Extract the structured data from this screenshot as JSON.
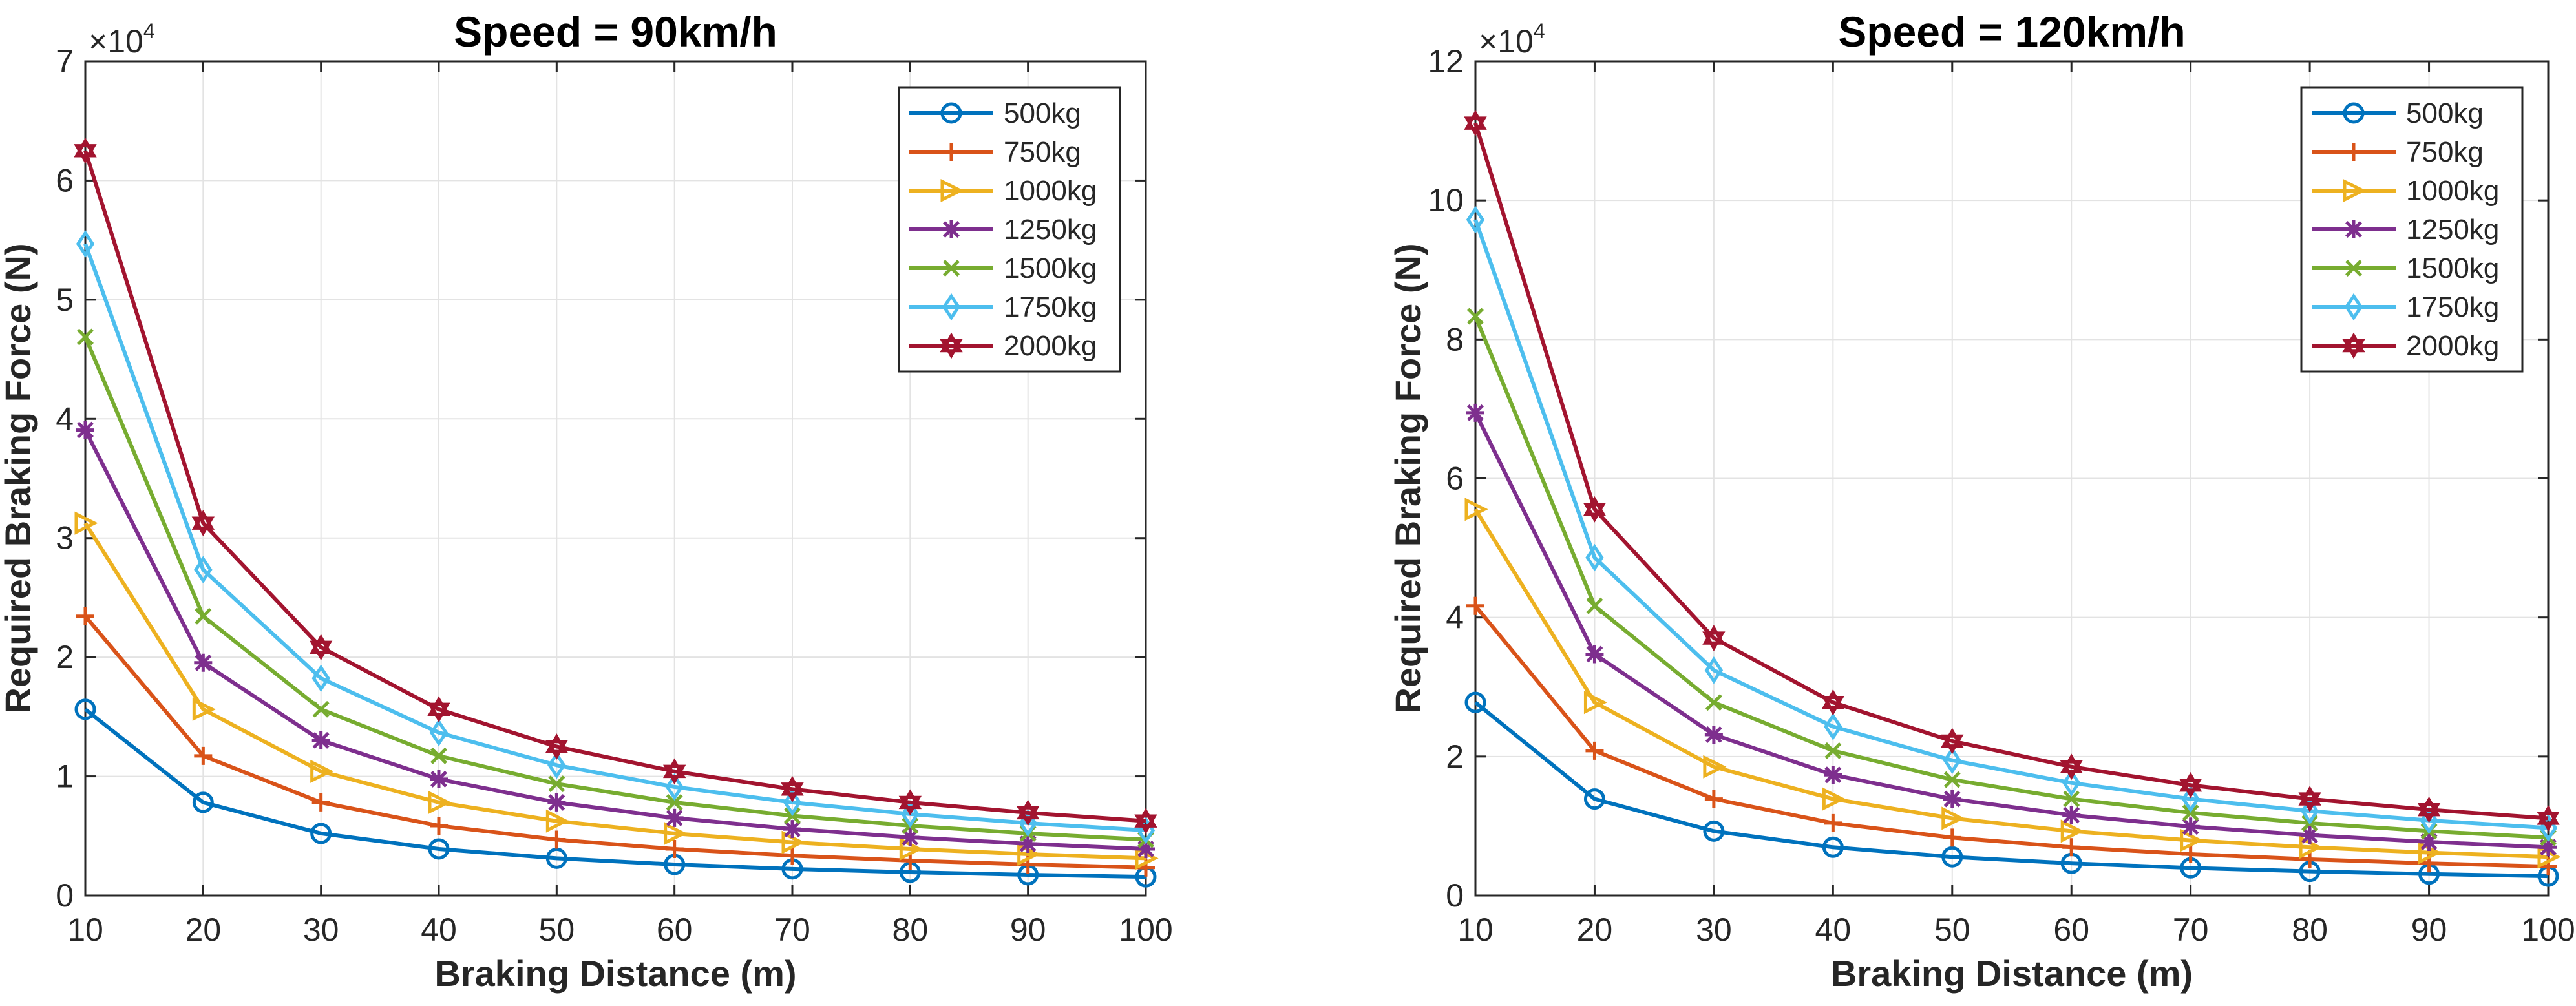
{
  "chart_data": [
    {
      "type": "line",
      "title": "Speed = 90km/h",
      "xlabel": "Braking Distance (m)",
      "ylabel": "Required Braking Force (N)",
      "y_multiplier": "×10",
      "y_multiplier_exp": "4",
      "x": [
        10,
        20,
        30,
        40,
        50,
        60,
        70,
        80,
        90,
        100
      ],
      "xlim": [
        10,
        100
      ],
      "ylim": [
        0,
        70000
      ],
      "x_ticks": [
        "10",
        "20",
        "30",
        "40",
        "50",
        "60",
        "70",
        "80",
        "90",
        "100"
      ],
      "y_ticks": [
        0,
        10000,
        20000,
        30000,
        40000,
        50000,
        60000,
        70000
      ],
      "y_tick_labels": [
        "0",
        "1",
        "2",
        "3",
        "4",
        "5",
        "6",
        "7"
      ],
      "grid": true,
      "legend_position": "top-right",
      "series": [
        {
          "name": "500kg",
          "color": "#0072BD",
          "marker": "circle",
          "values": [
            15625,
            7813,
            5208,
            3906,
            3125,
            2604,
            2232,
            1953,
            1736,
            1563
          ]
        },
        {
          "name": "750kg",
          "color": "#D95319",
          "marker": "plus",
          "values": [
            23438,
            11719,
            7813,
            5859,
            4688,
            3906,
            3348,
            2930,
            2604,
            2344
          ]
        },
        {
          "name": "1000kg",
          "color": "#EDB120",
          "marker": "triangle-right",
          "values": [
            31250,
            15625,
            10417,
            7813,
            6250,
            5208,
            4464,
            3906,
            3472,
            3125
          ]
        },
        {
          "name": "1250kg",
          "color": "#7E2F8E",
          "marker": "asterisk",
          "values": [
            39063,
            19531,
            13021,
            9766,
            7813,
            6510,
            5580,
            4883,
            4340,
            3906
          ]
        },
        {
          "name": "1500kg",
          "color": "#77AC30",
          "marker": "x",
          "values": [
            46875,
            23438,
            15625,
            11719,
            9375,
            7813,
            6696,
            5859,
            5208,
            4688
          ]
        },
        {
          "name": "1750kg",
          "color": "#4DBEEE",
          "marker": "diamond",
          "values": [
            54688,
            27344,
            18229,
            13672,
            10938,
            9115,
            7813,
            6836,
            6076,
            5469
          ]
        },
        {
          "name": "2000kg",
          "color": "#A2142F",
          "marker": "hexagram",
          "values": [
            62500,
            31250,
            20833,
            15625,
            12500,
            10417,
            8929,
            7813,
            6944,
            6250
          ]
        }
      ]
    },
    {
      "type": "line",
      "title": "Speed = 120km/h",
      "xlabel": "Braking Distance (m)",
      "ylabel": "Required Braking Force (N)",
      "y_multiplier": "×10",
      "y_multiplier_exp": "4",
      "x": [
        10,
        20,
        30,
        40,
        50,
        60,
        70,
        80,
        90,
        100
      ],
      "xlim": [
        10,
        100
      ],
      "ylim": [
        0,
        120000
      ],
      "x_ticks": [
        "10",
        "20",
        "30",
        "40",
        "50",
        "60",
        "70",
        "80",
        "90",
        "100"
      ],
      "y_ticks": [
        0,
        20000,
        40000,
        60000,
        80000,
        100000,
        120000
      ],
      "y_tick_labels": [
        "0",
        "2",
        "4",
        "6",
        "8",
        "10",
        "12"
      ],
      "grid": true,
      "legend_position": "top-right",
      "series": [
        {
          "name": "500kg",
          "color": "#0072BD",
          "marker": "circle",
          "values": [
            27778,
            13889,
            9259,
            6944,
            5556,
            4630,
            3968,
            3472,
            3086,
            2778
          ]
        },
        {
          "name": "750kg",
          "color": "#D95319",
          "marker": "plus",
          "values": [
            41667,
            20833,
            13889,
            10417,
            8333,
            6944,
            5952,
            5208,
            4630,
            4167
          ]
        },
        {
          "name": "1000kg",
          "color": "#EDB120",
          "marker": "triangle-right",
          "values": [
            55556,
            27778,
            18519,
            13889,
            11111,
            9259,
            7937,
            6944,
            6173,
            5556
          ]
        },
        {
          "name": "1250kg",
          "color": "#7E2F8E",
          "marker": "asterisk",
          "values": [
            69444,
            34722,
            23148,
            17361,
            13889,
            11574,
            9921,
            8681,
            7716,
            6944
          ]
        },
        {
          "name": "1500kg",
          "color": "#77AC30",
          "marker": "x",
          "values": [
            83333,
            41667,
            27778,
            20833,
            16667,
            13889,
            11905,
            10417,
            9259,
            8333
          ]
        },
        {
          "name": "1750kg",
          "color": "#4DBEEE",
          "marker": "diamond",
          "values": [
            97222,
            48611,
            32407,
            24306,
            19444,
            16204,
            13889,
            12153,
            10802,
            9722
          ]
        },
        {
          "name": "2000kg",
          "color": "#A2142F",
          "marker": "hexagram",
          "values": [
            111111,
            55556,
            37037,
            27778,
            22222,
            18519,
            15873,
            13889,
            12346,
            11111
          ]
        }
      ]
    }
  ]
}
